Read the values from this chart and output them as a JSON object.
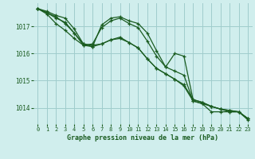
{
  "background_color": "#d0eeed",
  "grid_color": "#a0cccc",
  "line_color": "#1a5c20",
  "xlabel": "Graphe pression niveau de la mer (hPa)",
  "xlim": [
    -0.5,
    23.5
  ],
  "ylim": [
    1013.4,
    1017.85
  ],
  "yticks": [
    1014,
    1015,
    1016,
    1017
  ],
  "xticks": [
    0,
    1,
    2,
    3,
    4,
    5,
    6,
    7,
    8,
    9,
    10,
    11,
    12,
    13,
    14,
    15,
    16,
    17,
    18,
    19,
    20,
    21,
    22,
    23
  ],
  "series": [
    {
      "x": [
        0,
        1,
        2,
        3,
        4,
        5,
        6,
        7,
        8,
        9,
        10,
        11,
        12,
        13,
        14,
        15,
        16,
        17,
        18,
        19,
        20,
        21,
        22,
        23
      ],
      "y": [
        1017.65,
        1017.55,
        1017.4,
        1017.3,
        1016.9,
        1016.35,
        1016.25,
        1017.05,
        1017.3,
        1017.35,
        1017.2,
        1017.1,
        1016.75,
        1016.1,
        1015.5,
        1015.35,
        1015.2,
        1014.25,
        1014.15,
        1013.85,
        1013.85,
        1013.85,
        1013.85,
        1013.6
      ]
    },
    {
      "x": [
        0,
        1,
        2,
        3,
        4,
        5,
        6,
        7,
        8,
        9,
        10,
        11,
        12,
        13,
        14,
        15,
        16,
        17,
        18,
        19,
        20,
        21,
        22,
        23
      ],
      "y": [
        1017.65,
        1017.5,
        1017.35,
        1017.1,
        1016.75,
        1016.3,
        1016.25,
        1016.35,
        1016.5,
        1016.6,
        1016.4,
        1016.2,
        1015.8,
        1015.45,
        1015.25,
        1015.05,
        1014.85,
        1014.3,
        1014.2,
        1014.05,
        1013.95,
        1013.9,
        1013.85,
        1013.6
      ]
    },
    {
      "x": [
        0,
        1,
        2,
        3,
        4,
        5,
        6,
        7,
        8,
        9,
        10,
        11,
        12,
        13,
        14,
        15,
        16,
        17,
        18,
        19,
        20,
        21,
        22,
        23
      ],
      "y": [
        1017.65,
        1017.45,
        1017.1,
        1016.85,
        1016.55,
        1016.3,
        1016.35,
        1016.95,
        1017.2,
        1017.3,
        1017.1,
        1016.95,
        1016.45,
        1015.9,
        1015.5,
        1016.0,
        1015.9,
        1014.3,
        1014.2,
        1014.05,
        1013.95,
        1013.85,
        1013.85,
        1013.6
      ]
    },
    {
      "x": [
        0,
        1,
        2,
        3,
        4,
        5,
        6,
        7,
        8,
        9,
        10,
        11,
        12,
        13,
        14,
        15,
        16,
        17,
        18,
        19,
        20,
        21,
        22,
        23
      ],
      "y": [
        1017.65,
        1017.5,
        1017.3,
        1017.15,
        1016.75,
        1016.35,
        1016.3,
        1016.35,
        1016.5,
        1016.55,
        1016.4,
        1016.2,
        1015.8,
        1015.45,
        1015.25,
        1015.05,
        1014.8,
        1014.25,
        1014.15,
        1014.05,
        1013.95,
        1013.9,
        1013.85,
        1013.55
      ]
    }
  ]
}
